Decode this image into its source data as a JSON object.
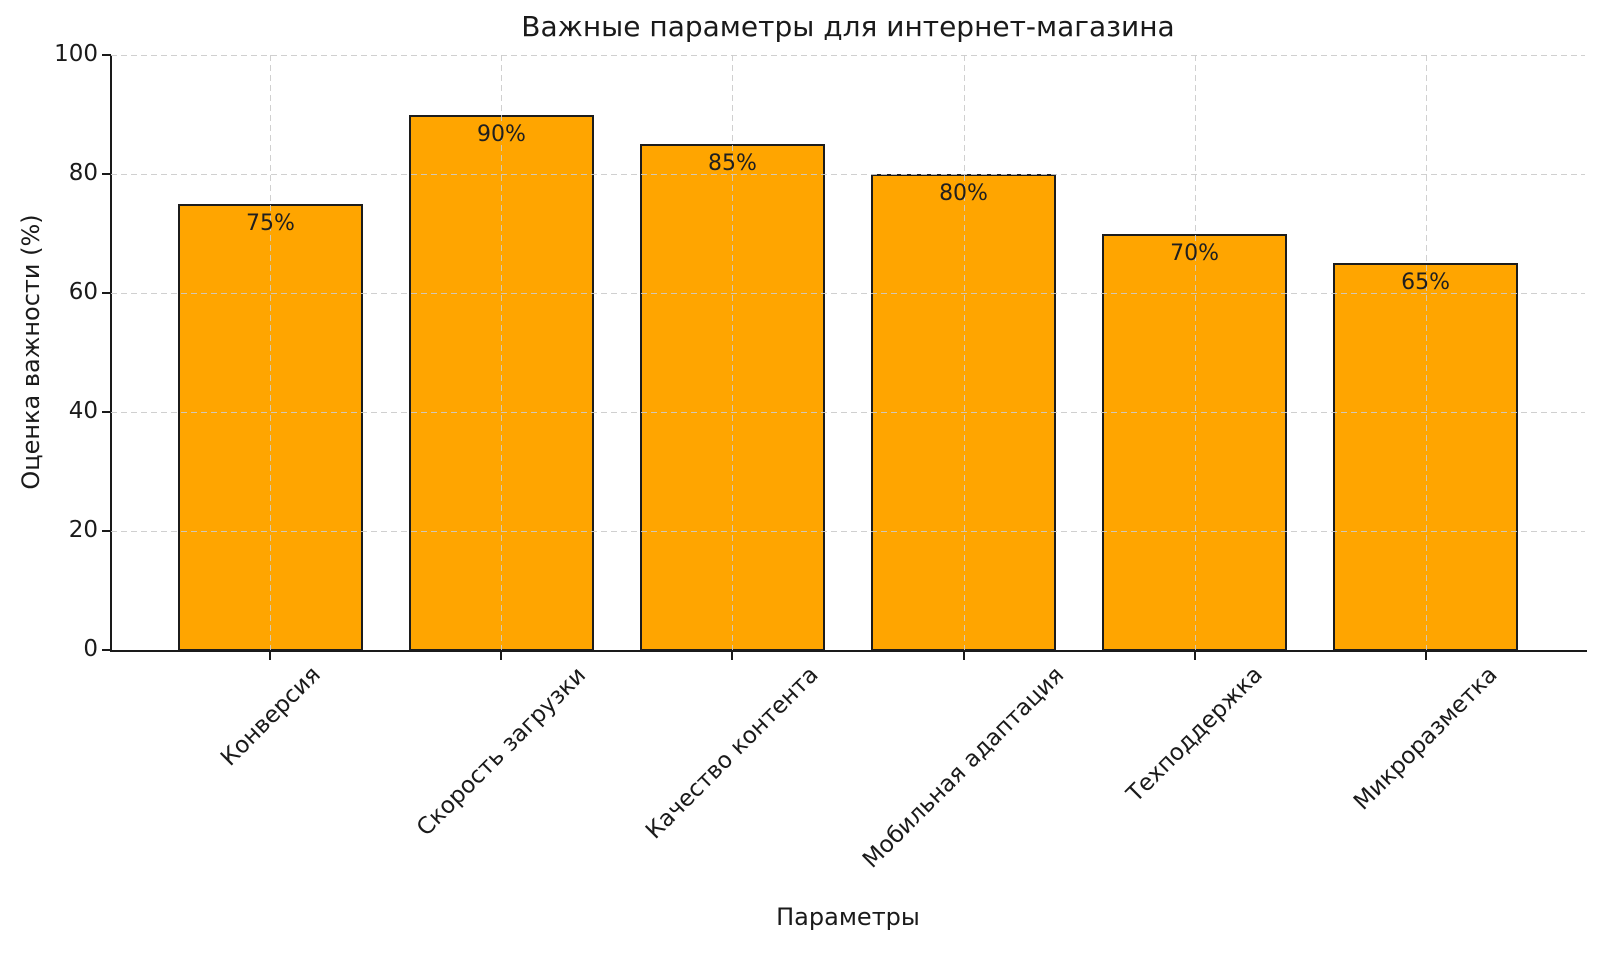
{
  "chart_data": {
    "type": "bar",
    "title": "Важные параметры для интернет-магазина",
    "xlabel": "Параметры",
    "ylabel": "Оценка важности (%)",
    "categories": [
      "Конверсия",
      "Скорость загрузки",
      "Качество контента",
      "Мобильная адаптация",
      "Техподдержка",
      "Микроразметка"
    ],
    "values": [
      75,
      90,
      85,
      80,
      70,
      65
    ],
    "bar_labels": [
      "75%",
      "90%",
      "85%",
      "80%",
      "70%",
      "65%"
    ],
    "ylim": [
      0,
      100
    ],
    "yticks": [
      0,
      20,
      40,
      60,
      80,
      100
    ],
    "xtick_rotation_deg": 45,
    "grid": "dashed both-axes drawn above bars",
    "legend": "none",
    "colors": {
      "bar_fill": "#ffa500",
      "bar_edge": "#1c1c1c",
      "grid_line": "#cbcbcb",
      "axis_line": "#1a1a1a",
      "text": "#1a1a1a",
      "background": "#ffffff"
    }
  }
}
